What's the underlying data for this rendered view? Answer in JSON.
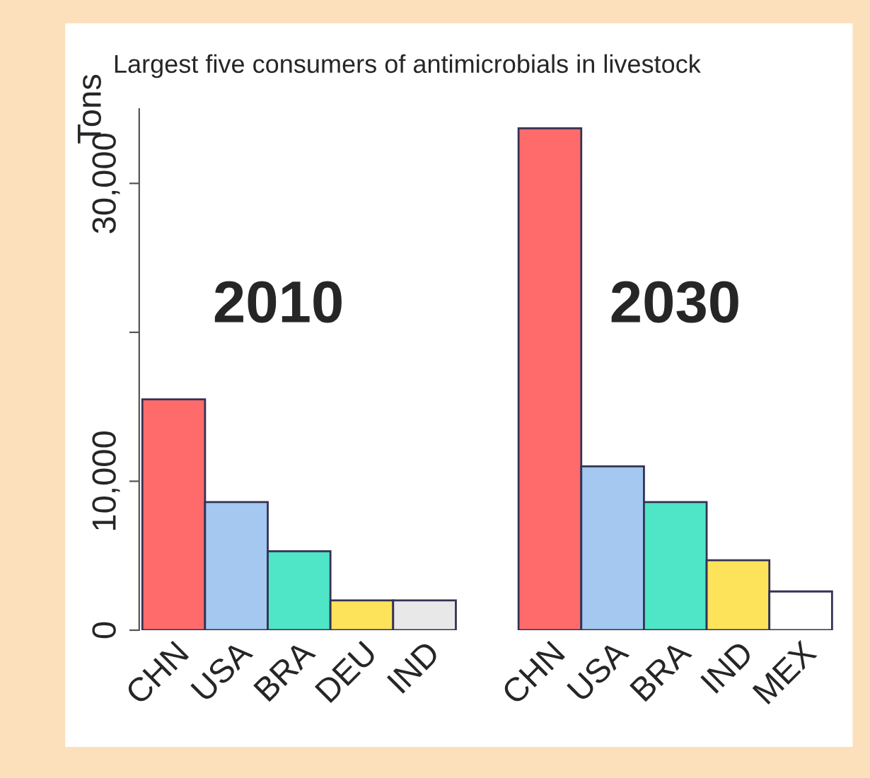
{
  "chart_data": {
    "type": "bar",
    "title": "Largest five consumers of antimicrobials in livestock",
    "ylabel": "Tons",
    "annotations": [
      "2010",
      "2030"
    ],
    "categories": [
      "CHN",
      "USA",
      "BRA",
      "DEU",
      "IND",
      null,
      "CHN",
      "USA",
      "BRA",
      "IND",
      "MEX"
    ],
    "values": [
      15500,
      8600,
      5300,
      2000,
      2000,
      null,
      33700,
      11000,
      8600,
      4700,
      2600
    ],
    "colors": [
      "#ff6b6b",
      "#a4c8f0",
      "#4ee6c6",
      "#fde35a",
      "#e8e8e8",
      "#ffffff",
      "#ff6b6b",
      "#a4c8f0",
      "#4ee6c6",
      "#fde35a",
      "#ffffff"
    ],
    "ylim": [
      0,
      35000
    ],
    "yticks": [
      0,
      {
        "value": 10000,
        "label": "10,000"
      },
      {
        "value": 20000,
        "label": null
      },
      {
        "value": 30000,
        "label": "30,000"
      }
    ]
  }
}
